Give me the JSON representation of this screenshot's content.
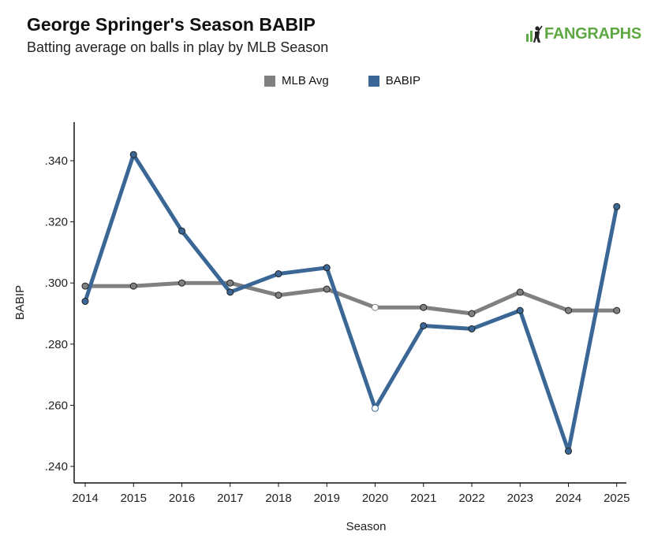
{
  "header": {
    "title": "George Springer's Season BABIP",
    "subtitle": "Batting average on balls in play by MLB Season",
    "logo_text": "FANGRAPHS"
  },
  "colors": {
    "mlb": "#808080",
    "babip": "#3a6795",
    "logo": "#5ea843"
  },
  "chart_data": {
    "type": "line",
    "x": [
      2014,
      2015,
      2016,
      2017,
      2018,
      2019,
      2020,
      2021,
      2022,
      2023,
      2024,
      2025
    ],
    "x_tick_labels": [
      "2014",
      "2015",
      "2016",
      "2017",
      "2018",
      "2019",
      "2020",
      "2021",
      "2022",
      "2023",
      "2024",
      "2025"
    ],
    "series": [
      {
        "name": "MLB Avg",
        "color": "#808080",
        "values": [
          0.299,
          0.299,
          0.3,
          0.3,
          0.296,
          0.298,
          0.292,
          0.292,
          0.29,
          0.297,
          0.291,
          0.291
        ]
      },
      {
        "name": "BABIP",
        "color": "#3a6795",
        "values": [
          0.294,
          0.342,
          0.317,
          0.297,
          0.303,
          0.305,
          0.259,
          0.286,
          0.285,
          0.291,
          0.245,
          0.325
        ]
      }
    ],
    "xlabel": "Season",
    "ylabel": "BABIP",
    "ylim": [
      0.235,
      0.352
    ],
    "y_ticks": [
      0.24,
      0.26,
      0.28,
      0.3,
      0.32,
      0.34
    ],
    "y_tick_labels": [
      ".240",
      ".260",
      ".280",
      ".300",
      ".320",
      ".340"
    ],
    "grid": false,
    "legend_position": "top-center",
    "hollow_marker_x": 2020
  }
}
